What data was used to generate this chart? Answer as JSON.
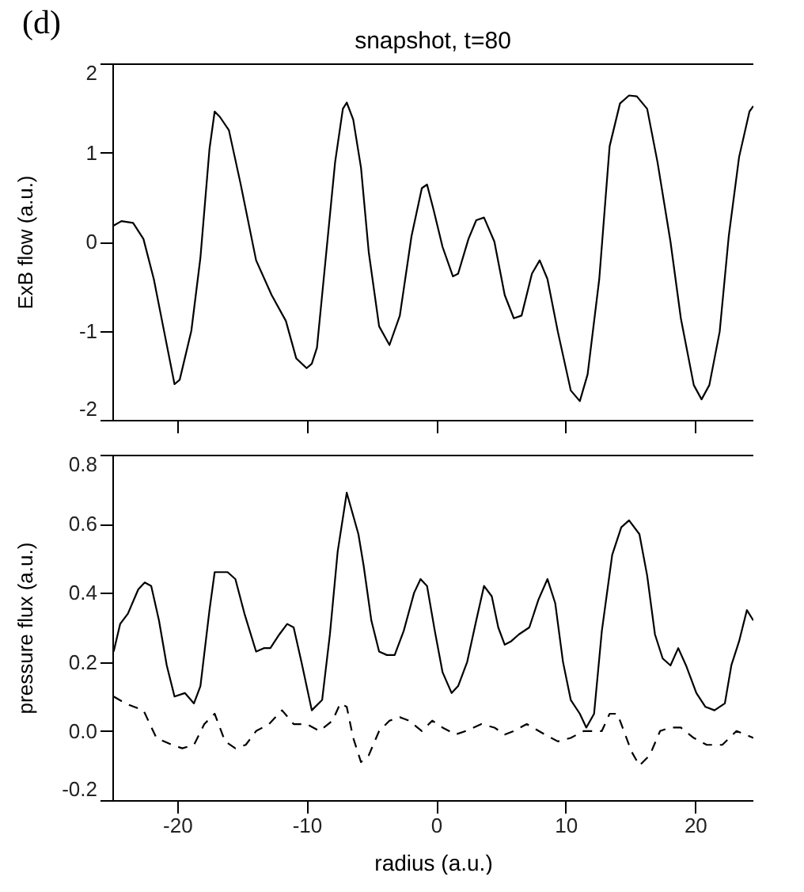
{
  "chart_data": [
    {
      "type": "line",
      "title": "snapshot, t=80",
      "ylabel": "ExB flow (a.u.)",
      "annotations": [
        "(d)"
      ],
      "xlim": [
        -25,
        24.5
      ],
      "xticks": [
        -20,
        -10,
        0,
        10,
        20
      ],
      "ylim": [
        -2,
        2
      ],
      "yticks": [
        -2,
        -1,
        0,
        1,
        2
      ],
      "tick_labels": "y",
      "grid": false,
      "series": [
        {
          "color": "#000000",
          "line_style": "solid",
          "x": [
            -24.9,
            -24.3,
            -23.4,
            -22.6,
            -21.8,
            -21.0,
            -20.2,
            -19.8,
            -18.9,
            -18.2,
            -17.5,
            -17.1,
            -16.7,
            -16.0,
            -15.1,
            -13.9,
            -12.7,
            -11.6,
            -10.8,
            -10.0,
            -9.6,
            -9.2,
            -8.6,
            -7.8,
            -7.2,
            -6.9,
            -6.4,
            -5.8,
            -5.2,
            -4.4,
            -3.6,
            -2.8,
            -1.9,
            -1.1,
            -0.7,
            -0.2,
            0.5,
            1.3,
            1.7,
            2.5,
            3.1,
            3.7,
            4.5,
            5.3,
            6.0,
            6.6,
            7.4,
            8.0,
            8.6,
            9.4,
            10.4,
            11.1,
            11.7,
            12.6,
            13.4,
            14.2,
            14.9,
            15.5,
            16.3,
            17.1,
            18.1,
            18.9,
            19.9,
            20.5,
            21.1,
            21.9,
            22.6,
            23.4,
            24.2,
            24.5
          ],
          "values": [
            0.18,
            0.23,
            0.21,
            0.03,
            -0.42,
            -1.01,
            -1.6,
            -1.55,
            -1.0,
            -0.18,
            1.04,
            1.46,
            1.4,
            1.25,
            0.65,
            -0.21,
            -0.6,
            -0.89,
            -1.31,
            -1.42,
            -1.37,
            -1.19,
            -0.3,
            0.89,
            1.49,
            1.56,
            1.37,
            0.83,
            -0.12,
            -0.95,
            -1.16,
            -0.83,
            0.06,
            0.6,
            0.64,
            0.36,
            -0.06,
            -0.39,
            -0.36,
            0.03,
            0.24,
            0.27,
            0,
            -0.6,
            -0.86,
            -0.83,
            -0.36,
            -0.21,
            -0.42,
            -1.01,
            -1.67,
            -1.79,
            -1.49,
            -0.42,
            1.07,
            1.55,
            1.64,
            1.63,
            1.49,
            0.89,
            0,
            -0.86,
            -1.61,
            -1.77,
            -1.61,
            -1.01,
            0.06,
            0.95,
            1.46,
            1.52
          ]
        }
      ]
    },
    {
      "type": "line",
      "xlabel": "radius (a.u.)",
      "ylabel": "pressure flux (a.u.)",
      "xlim": [
        -25,
        24.5
      ],
      "xticks": [
        -20,
        -10,
        0,
        10,
        20
      ],
      "ylim": [
        -0.2,
        0.8
      ],
      "yticks": [
        {
          "value": -0.2,
          "label": "-0.2"
        },
        {
          "value": 0,
          "label": "0.0"
        },
        {
          "value": 0.2,
          "label": "0.2"
        },
        {
          "value": 0.4,
          "label": "0.4"
        },
        {
          "value": 0.6,
          "label": "0.6"
        },
        {
          "value": 0.8,
          "label": "0.8"
        }
      ],
      "grid": false,
      "series": [
        {
          "color": "#000000",
          "line_style": "solid",
          "x": [
            -24.9,
            -24.4,
            -23.8,
            -23.0,
            -22.5,
            -22.0,
            -21.4,
            -20.8,
            -20.2,
            -19.4,
            -18.7,
            -18.2,
            -17.5,
            -17.1,
            -16.5,
            -16.1,
            -15.5,
            -14.8,
            -13.9,
            -13.3,
            -12.8,
            -12.1,
            -11.5,
            -11.0,
            -10.4,
            -9.6,
            -8.8,
            -8.2,
            -7.6,
            -6.9,
            -6.0,
            -5.6,
            -5.0,
            -4.4,
            -3.8,
            -3.2,
            -2.5,
            -1.7,
            -1.2,
            -0.7,
            -0.1,
            0.5,
            1.2,
            1.7,
            2.4,
            3.1,
            3.7,
            4.3,
            4.8,
            5.3,
            5.8,
            6.4,
            7.2,
            7.9,
            8.6,
            9.2,
            9.8,
            10.4,
            11.1,
            11.6,
            12.2,
            12.8,
            13.6,
            14.3,
            14.9,
            15.7,
            16.3,
            16.9,
            17.5,
            18.1,
            18.7,
            19.3,
            20.1,
            20.8,
            21.5,
            22.3,
            22.8,
            23.4,
            24.0,
            24.5
          ],
          "values": [
            0.23,
            0.31,
            0.34,
            0.41,
            0.43,
            0.42,
            0.32,
            0.19,
            0.1,
            0.11,
            0.08,
            0.13,
            0.35,
            0.46,
            0.46,
            0.46,
            0.44,
            0.34,
            0.23,
            0.24,
            0.24,
            0.28,
            0.31,
            0.3,
            0.2,
            0.06,
            0.09,
            0.28,
            0.52,
            0.69,
            0.57,
            0.48,
            0.32,
            0.23,
            0.22,
            0.22,
            0.29,
            0.4,
            0.44,
            0.42,
            0.29,
            0.17,
            0.11,
            0.13,
            0.2,
            0.32,
            0.42,
            0.39,
            0.3,
            0.25,
            0.26,
            0.28,
            0.3,
            0.38,
            0.44,
            0.37,
            0.2,
            0.09,
            0.05,
            0.01,
            0.05,
            0.29,
            0.51,
            0.59,
            0.61,
            0.57,
            0.45,
            0.28,
            0.21,
            0.19,
            0.24,
            0.19,
            0.11,
            0.07,
            0.06,
            0.08,
            0.19,
            0.26,
            0.35,
            0.32
          ]
        },
        {
          "color": "#000000",
          "line_style": "dashed",
          "x": [
            -24.9,
            -24.0,
            -22.6,
            -21.6,
            -20.4,
            -19.6,
            -18.7,
            -17.9,
            -17.1,
            -16.3,
            -15.5,
            -14.7,
            -13.9,
            -12.9,
            -11.9,
            -11.0,
            -10.0,
            -9.0,
            -8.0,
            -7.4,
            -6.9,
            -6.4,
            -5.8,
            -5.2,
            -4.4,
            -3.6,
            -2.8,
            -2.1,
            -1.1,
            -0.3,
            0.5,
            1.5,
            2.3,
            3.5,
            4.5,
            5.3,
            6.0,
            7.0,
            8.4,
            9.4,
            10.4,
            11.4,
            12.2,
            12.8,
            13.4,
            14.0,
            14.5,
            15.1,
            15.7,
            16.5,
            17.3,
            18.1,
            18.9,
            19.9,
            20.9,
            22.1,
            23.2,
            24.5
          ],
          "values": [
            0.1,
            0.08,
            0.06,
            -0.02,
            -0.04,
            -0.05,
            -0.04,
            0.02,
            0.05,
            -0.03,
            -0.05,
            -0.04,
            0,
            0.02,
            0.06,
            0.02,
            0.02,
            0.0,
            0.03,
            0.08,
            0.07,
            -0.02,
            -0.09,
            -0.07,
            0,
            0.03,
            0.04,
            0.03,
            0.0,
            0.03,
            0.01,
            -0.01,
            0,
            0.02,
            0.01,
            -0.01,
            0,
            0.02,
            -0.01,
            -0.03,
            -0.02,
            0,
            0,
            0,
            0.05,
            0.05,
            0,
            -0.06,
            -0.1,
            -0.07,
            0,
            0.01,
            0.01,
            -0.02,
            -0.04,
            -0.04,
            0,
            -0.02
          ]
        }
      ]
    }
  ]
}
